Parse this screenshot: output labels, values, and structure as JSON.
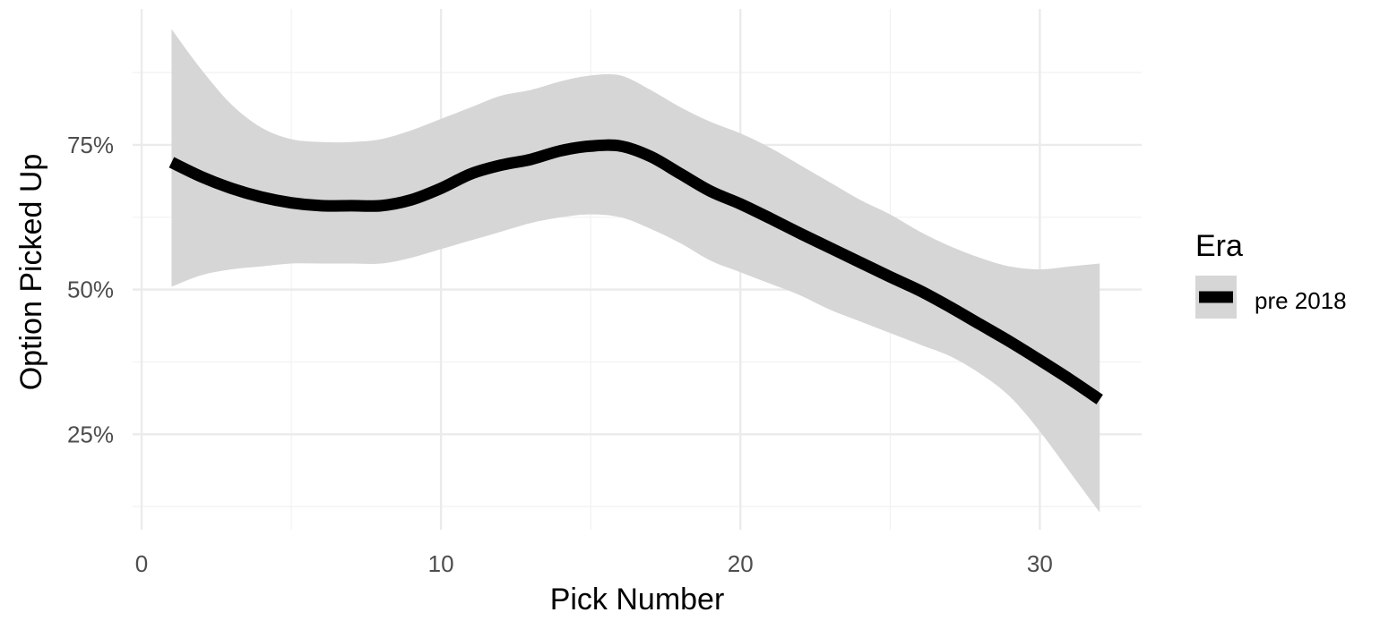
{
  "chart_data": {
    "type": "line",
    "title": "",
    "xlabel": "Pick Number",
    "ylabel": "Option Picked Up",
    "xlim": [
      -0.3,
      33.4
    ],
    "ylim": [
      0.085,
      0.985
    ],
    "x_ticks": [
      0,
      10,
      20,
      30
    ],
    "x_tick_labels": [
      "0",
      "10",
      "20",
      "30"
    ],
    "x_minor_ticks": [
      5,
      15,
      25
    ],
    "y_ticks": [
      0.25,
      0.5,
      0.75
    ],
    "y_tick_labels": [
      "25%",
      "50%",
      "75%"
    ],
    "y_minor_ticks": [
      0.125,
      0.375,
      0.625,
      0.875
    ],
    "grid": true,
    "legend": {
      "title": "Era",
      "position": "right",
      "entries": [
        "pre 2018"
      ]
    },
    "series": [
      {
        "name": "pre 2018",
        "color": "#000000",
        "x": [
          1,
          2,
          3,
          4,
          5,
          6,
          7,
          8,
          9,
          10,
          11,
          12,
          13,
          14,
          15,
          16,
          17,
          18,
          19,
          20,
          21,
          22,
          23,
          24,
          25,
          26,
          27,
          28,
          29,
          30,
          31,
          32
        ],
        "y": [
          0.72,
          0.695,
          0.675,
          0.66,
          0.65,
          0.645,
          0.645,
          0.645,
          0.655,
          0.675,
          0.7,
          0.715,
          0.725,
          0.74,
          0.748,
          0.748,
          0.73,
          0.7,
          0.67,
          0.648,
          0.623,
          0.597,
          0.572,
          0.547,
          0.522,
          0.498,
          0.47,
          0.44,
          0.41,
          0.378,
          0.345,
          0.31
        ],
        "ci_lower": [
          0.505,
          0.525,
          0.535,
          0.54,
          0.545,
          0.545,
          0.545,
          0.545,
          0.555,
          0.57,
          0.585,
          0.6,
          0.615,
          0.625,
          0.63,
          0.625,
          0.605,
          0.58,
          0.55,
          0.53,
          0.51,
          0.49,
          0.465,
          0.445,
          0.425,
          0.405,
          0.385,
          0.355,
          0.315,
          0.255,
          0.185,
          0.115
        ],
        "ci_upper": [
          0.95,
          0.88,
          0.82,
          0.78,
          0.76,
          0.755,
          0.755,
          0.76,
          0.775,
          0.795,
          0.815,
          0.835,
          0.845,
          0.86,
          0.87,
          0.87,
          0.845,
          0.815,
          0.79,
          0.77,
          0.745,
          0.715,
          0.685,
          0.655,
          0.63,
          0.6,
          0.575,
          0.555,
          0.54,
          0.535,
          0.54,
          0.545
        ]
      }
    ],
    "ribbon_color": "#d6d6d6"
  }
}
